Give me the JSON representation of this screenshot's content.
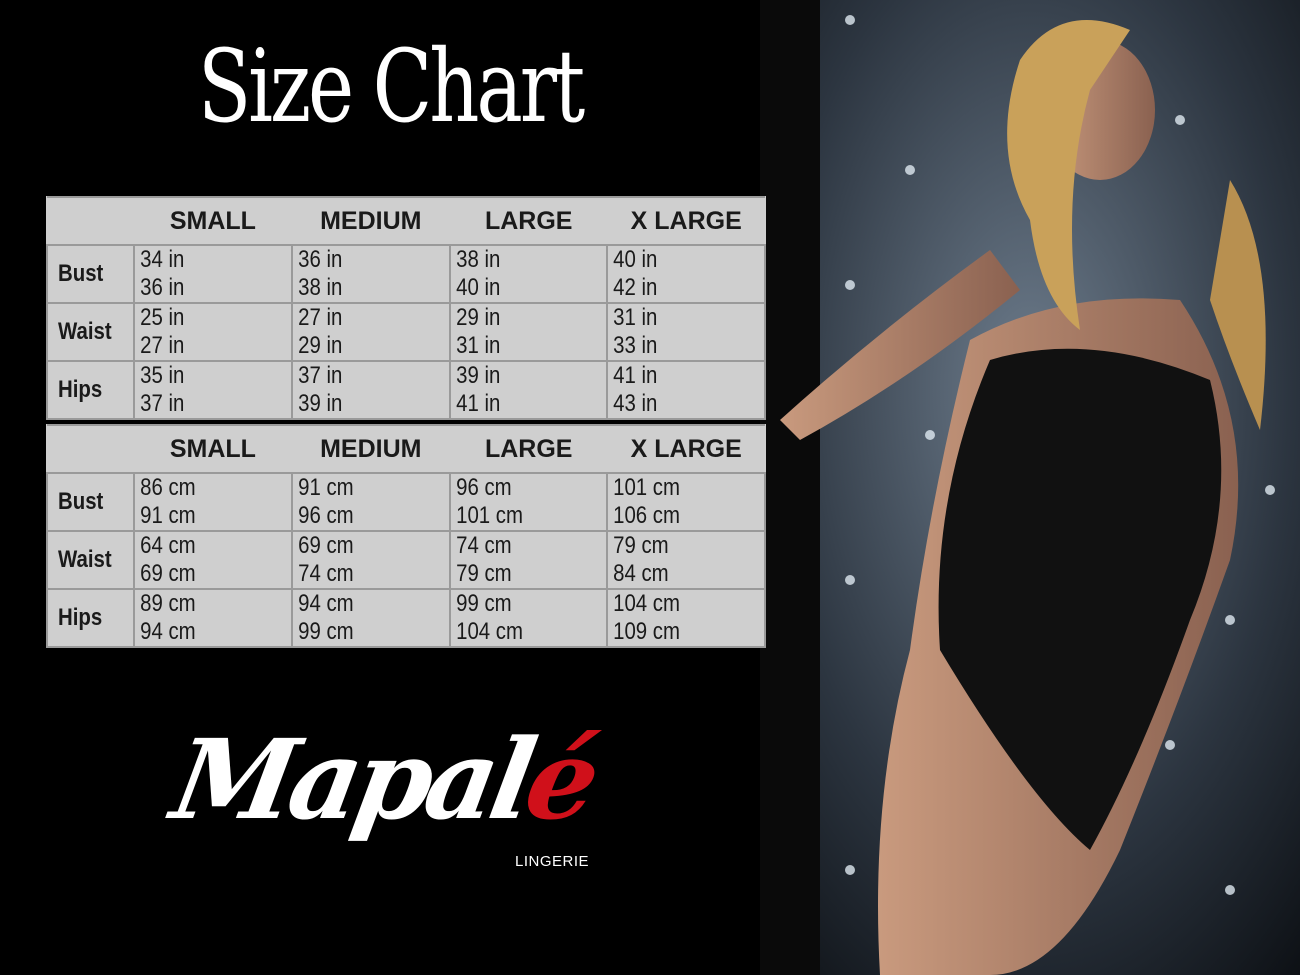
{
  "title": "Size Chart",
  "colors": {
    "background": "#000000",
    "table_bg": "#cfcfcf",
    "logo_accent": "#d0101a"
  },
  "sizes": [
    "SMALL",
    "MEDIUM",
    "LARGE",
    "X LARGE"
  ],
  "inches": {
    "rows": [
      {
        "label": "Bust",
        "values": [
          "34 in",
          "36 in",
          "36 in",
          "38 in",
          "38 in",
          "40 in",
          "40 in",
          "42 in"
        ]
      },
      {
        "label": "Waist",
        "values": [
          "25 in",
          "27 in",
          "27 in",
          "29 in",
          "29 in",
          "31 in",
          "31 in",
          "33 in"
        ]
      },
      {
        "label": "Hips",
        "values": [
          "35 in",
          "37 in",
          "37 in",
          "39 in",
          "39 in",
          "41 in",
          "41 in",
          "43 in"
        ]
      }
    ]
  },
  "cm": {
    "rows": [
      {
        "label": "Bust",
        "values": [
          "86 cm",
          "91 cm",
          "91 cm",
          "96 cm",
          "96 cm",
          "101 cm",
          "101 cm",
          "106 cm"
        ]
      },
      {
        "label": "Waist",
        "values": [
          "64 cm",
          "69 cm",
          "69 cm",
          "74 cm",
          "74 cm",
          "79 cm",
          "79 cm",
          "84 cm"
        ]
      },
      {
        "label": "Hips",
        "values": [
          "89 cm",
          "94 cm",
          "94 cm",
          "99 cm",
          "99 cm",
          "104 cm",
          "104 cm",
          "109 cm"
        ]
      }
    ]
  },
  "logo": {
    "brand": "Mapalé",
    "tagline": "LINGERIE"
  }
}
